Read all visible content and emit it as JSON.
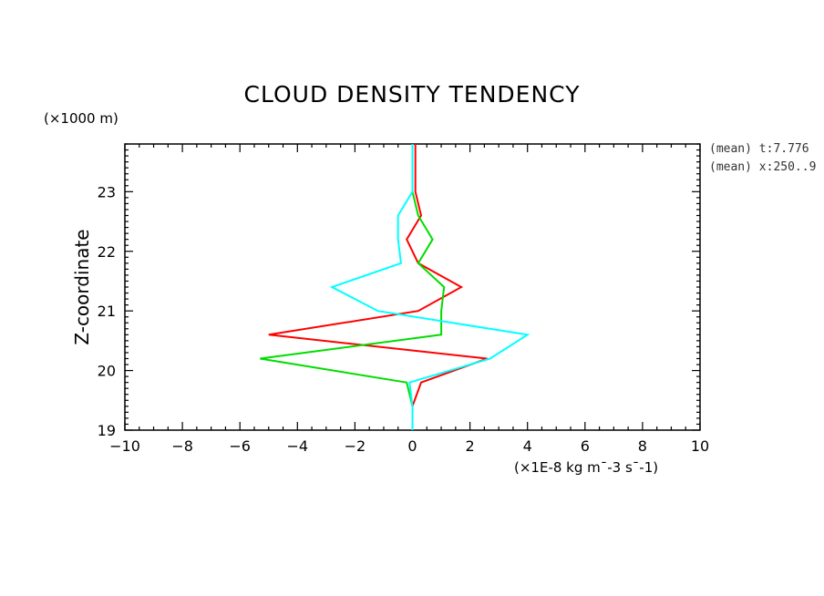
{
  "chart_data": {
    "type": "line",
    "title": "CLOUD DENSITY TENDENCY",
    "ylabel": "Z-coordinate",
    "yunit": "(×1000 m)",
    "xunit": "(×1E-8 kg m¯-3 s¯-1)",
    "xlim": [
      -10,
      10
    ],
    "ylim": [
      19,
      23.8
    ],
    "xticks": [
      -10,
      -8,
      -6,
      -4,
      -2,
      0,
      2,
      4,
      6,
      8,
      10
    ],
    "xtick_labels": [
      "−10",
      "−8",
      "−6",
      "−4",
      "−2",
      "0",
      "2",
      "4",
      "6",
      "8",
      "10"
    ],
    "yticks": [
      19,
      20,
      21,
      22,
      23
    ],
    "ytick_labels": [
      "19",
      "20",
      "21",
      "22",
      "23"
    ],
    "info_lines": [
      "(mean) t:7.776",
      "(mean) x:250..9"
    ],
    "grid": false,
    "series": [
      {
        "color": "#ff0000",
        "points": [
          [
            0,
            19
          ],
          [
            0,
            19.4
          ],
          [
            0.3,
            19.8
          ],
          [
            2.6,
            20.2
          ],
          [
            -5,
            20.6
          ],
          [
            0.2,
            21.0
          ],
          [
            1.7,
            21.4
          ],
          [
            0.2,
            21.8
          ],
          [
            -0.2,
            22.2
          ],
          [
            0.3,
            22.6
          ],
          [
            0.1,
            23.0
          ],
          [
            0.1,
            23.8
          ]
        ]
      },
      {
        "color": "#00dd00",
        "points": [
          [
            0,
            19
          ],
          [
            0,
            19.4
          ],
          [
            -0.2,
            19.8
          ],
          [
            -5.3,
            20.2
          ],
          [
            1,
            20.6
          ],
          [
            1,
            21.0
          ],
          [
            1.1,
            21.4
          ],
          [
            0.2,
            21.8
          ],
          [
            0.7,
            22.2
          ],
          [
            0.2,
            22.6
          ],
          [
            0,
            23.0
          ],
          [
            0,
            23.8
          ]
        ]
      },
      {
        "color": "#00ffff",
        "points": [
          [
            0,
            19
          ],
          [
            0,
            19.4
          ],
          [
            -0.1,
            19.8
          ],
          [
            2.7,
            20.2
          ],
          [
            4,
            20.6
          ],
          [
            -1.2,
            21.0
          ],
          [
            -2.8,
            21.4
          ],
          [
            -0.4,
            21.8
          ],
          [
            -0.5,
            22.2
          ],
          [
            -0.5,
            22.6
          ],
          [
            0,
            23.0
          ],
          [
            0,
            23.8
          ]
        ]
      }
    ]
  }
}
